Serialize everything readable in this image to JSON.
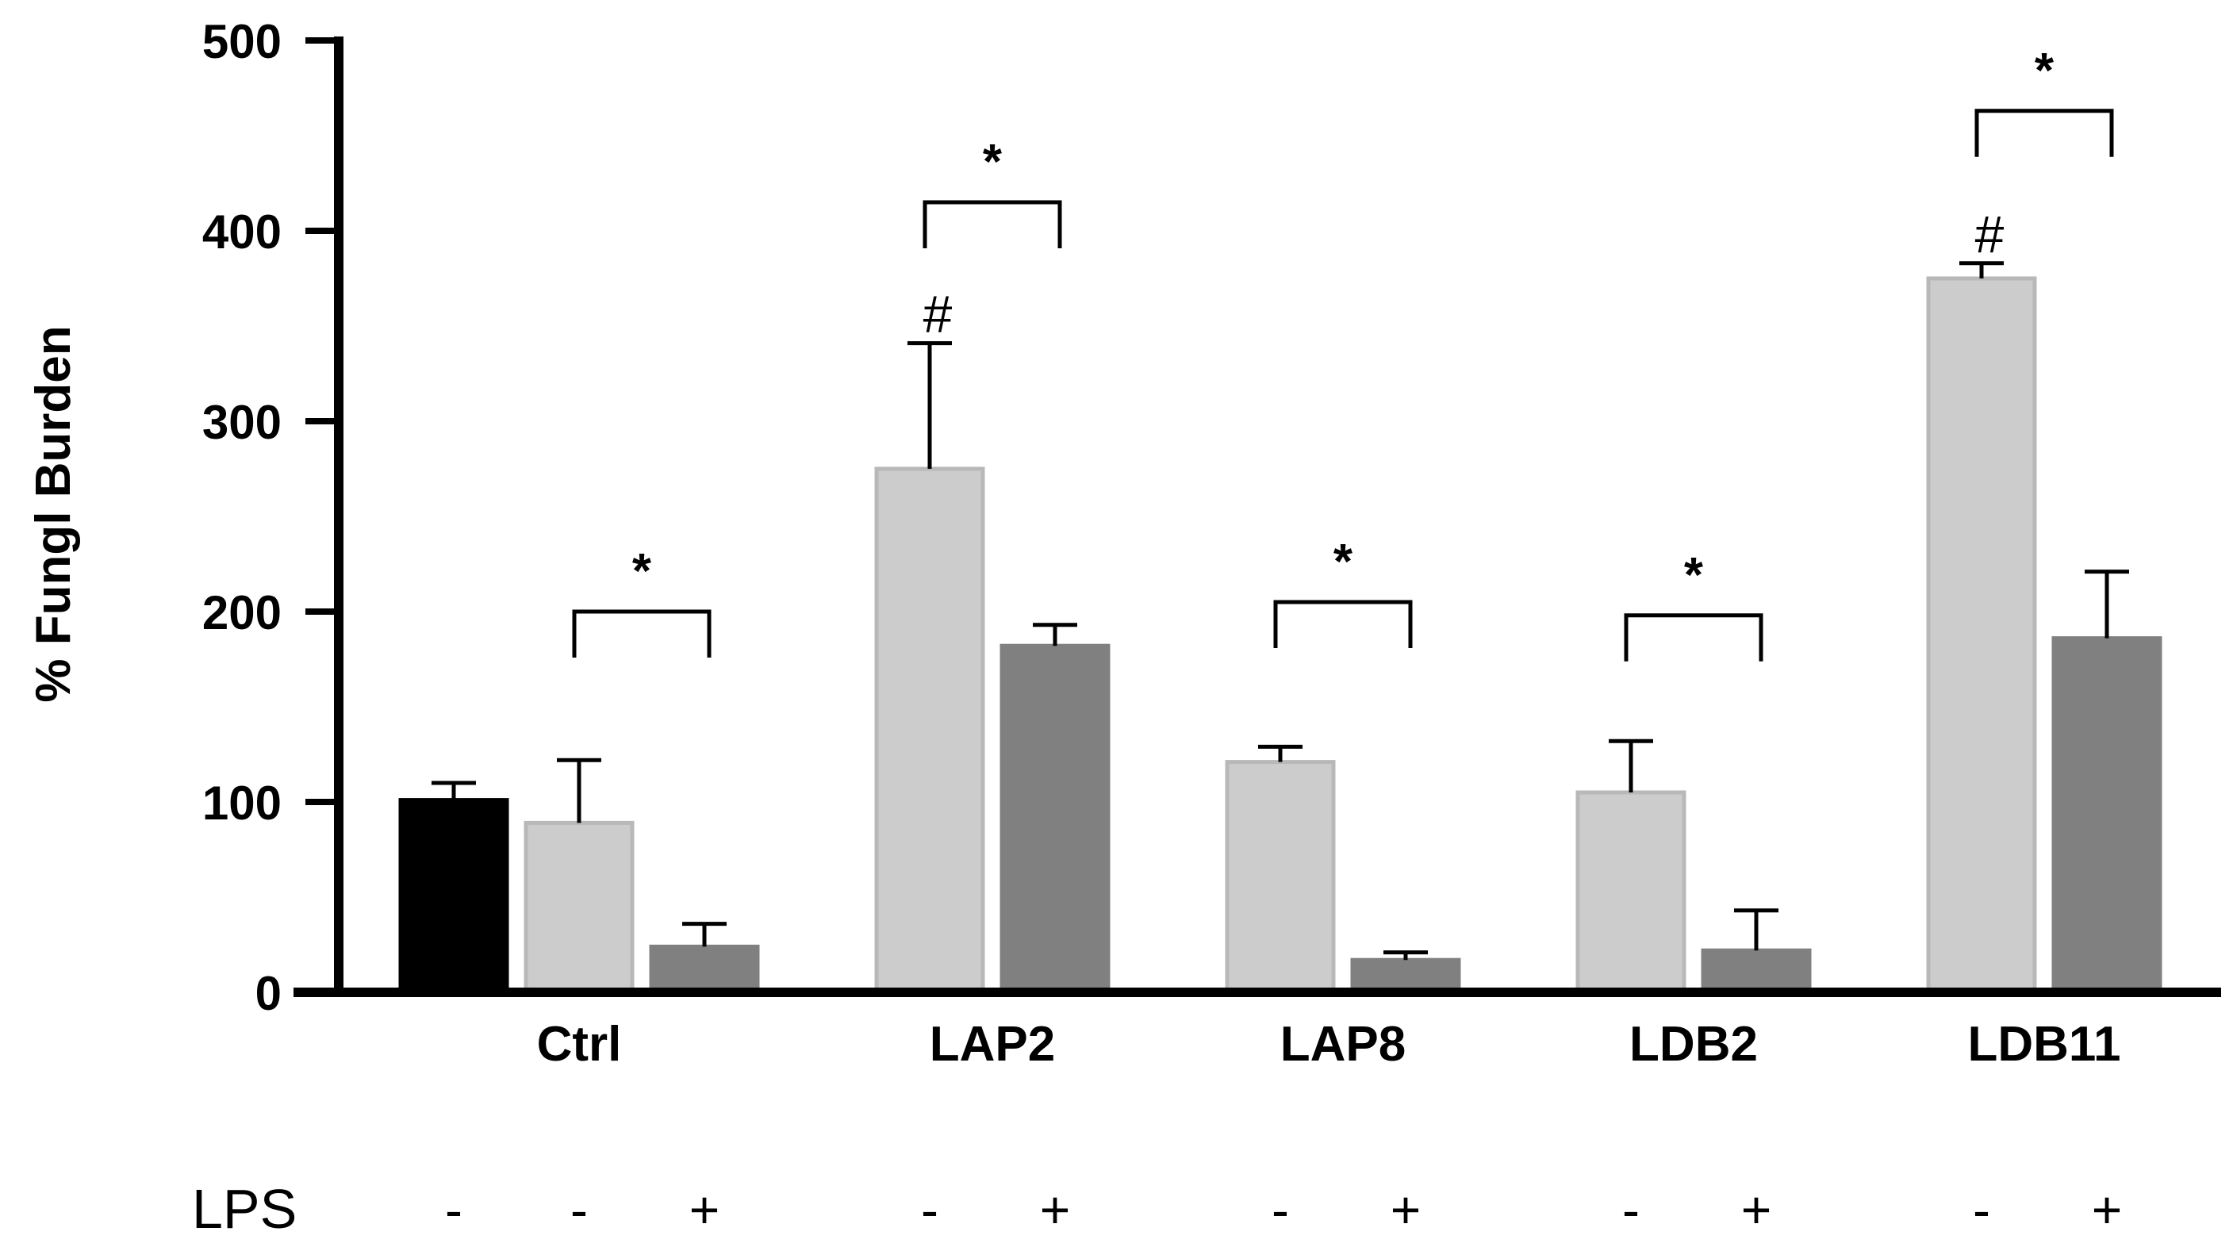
{
  "chart_data": {
    "type": "bar",
    "title": "",
    "xlabel": "",
    "ylabel": "% Fungl Burden",
    "ylim": [
      0,
      500
    ],
    "yticks": [
      "0",
      "100",
      "200",
      "300",
      "400",
      "500"
    ],
    "groups": [
      "Ctrl",
      "LAP2",
      "LAP8",
      "LDB2",
      "LDB11"
    ],
    "lps_label": "LPS",
    "bars": [
      {
        "group": "Ctrl",
        "lps": "-",
        "kind": "control",
        "value": 101,
        "error": 9
      },
      {
        "group": "Ctrl",
        "lps": "-",
        "kind": "untreated",
        "value": 89,
        "error": 33
      },
      {
        "group": "Ctrl",
        "lps": "+",
        "kind": "lps",
        "value": 24,
        "error": 12
      },
      {
        "group": "LAP2",
        "lps": "-",
        "kind": "untreated",
        "value": 275,
        "error": 66,
        "mark": "#"
      },
      {
        "group": "LAP2",
        "lps": "+",
        "kind": "lps",
        "value": 182,
        "error": 11
      },
      {
        "group": "LAP8",
        "lps": "-",
        "kind": "untreated",
        "value": 121,
        "error": 8
      },
      {
        "group": "LAP8",
        "lps": "+",
        "kind": "lps",
        "value": 17,
        "error": 4
      },
      {
        "group": "LDB2",
        "lps": "-",
        "kind": "untreated",
        "value": 105,
        "error": 27
      },
      {
        "group": "LDB2",
        "lps": "+",
        "kind": "lps",
        "value": 22,
        "error": 21
      },
      {
        "group": "LDB11",
        "lps": "-",
        "kind": "untreated",
        "value": 375,
        "error": 8,
        "mark": "#"
      },
      {
        "group": "LDB11",
        "lps": "+",
        "kind": "lps",
        "value": 186,
        "error": 35
      }
    ],
    "significance": [
      {
        "from_bar": 1,
        "to_bar": 2,
        "level": 200,
        "label": "*"
      },
      {
        "from_bar": 3,
        "to_bar": 4,
        "level": 415,
        "label": "*"
      },
      {
        "from_bar": 5,
        "to_bar": 6,
        "level": 205,
        "label": "*"
      },
      {
        "from_bar": 7,
        "to_bar": 8,
        "level": 198,
        "label": "*"
      },
      {
        "from_bar": 9,
        "to_bar": 10,
        "level": 463,
        "label": "*"
      }
    ],
    "colors": {
      "control": "#000000",
      "untreated": "#cccccc",
      "untreated_edge": "#b8b8b8",
      "lps": "#808080",
      "axis": "#000000"
    }
  }
}
